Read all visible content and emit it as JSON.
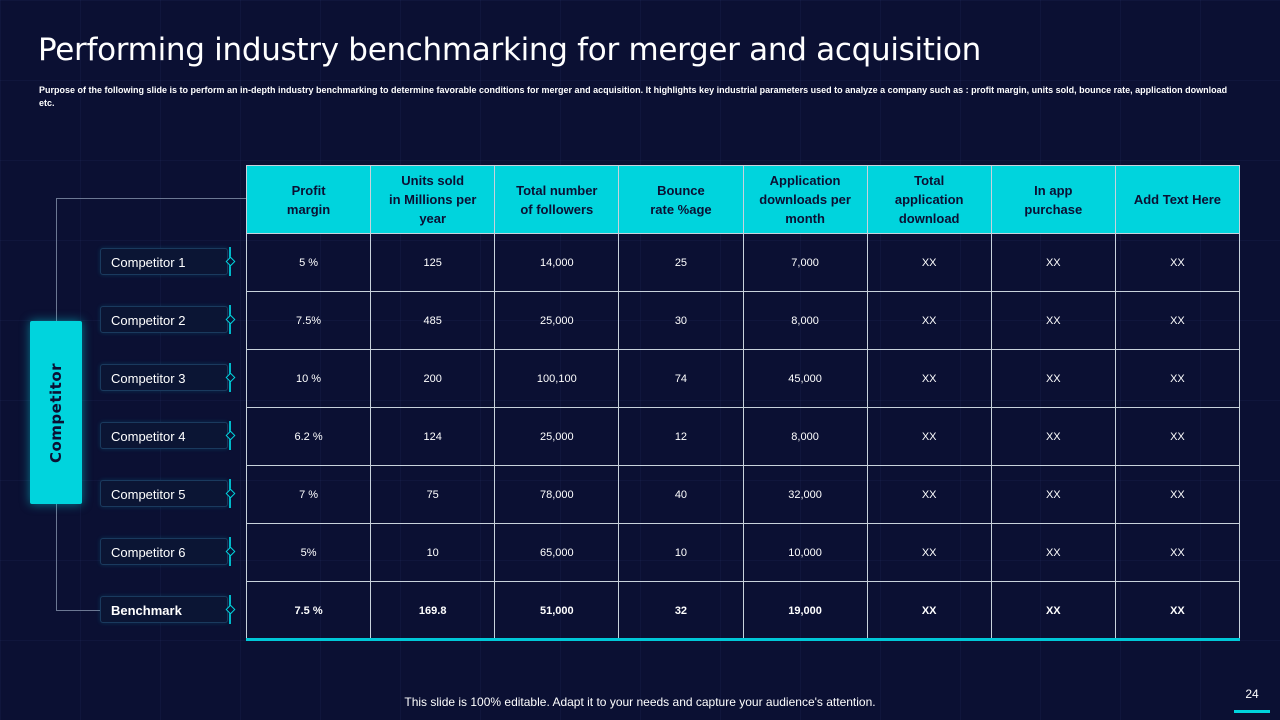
{
  "slide": {
    "title": "Performing industry benchmarking for merger and acquisition",
    "subtitle": "Purpose of the following slide is to perform an in-depth industry benchmarking to determine favorable conditions for merger and acquisition. It highlights key industrial parameters used to analyze a company such as : profit margin, units sold, bounce rate, application download etc.",
    "category_label": "Competitor",
    "footer": "This slide is 100% editable. Adapt it to your needs and capture your audience's attention.",
    "page_number": "24"
  },
  "colors": {
    "background": "#0b1033",
    "accent": "#00d4dd",
    "grid_line": "#c8d2dc"
  },
  "table": {
    "headers": [
      "Profit\nmargin",
      "Units sold\nin Millions per\nyear",
      "Total number\nof followers",
      "Bounce\nrate %age",
      "Application\ndownloads per\nmonth",
      "Total\napplication\ndownload",
      "In app\npurchase",
      "Add Text Here"
    ],
    "rows": [
      {
        "label": "Competitor 1",
        "cells": [
          "5 %",
          "125",
          "14,000",
          "25",
          "7,000",
          "XX",
          "XX",
          "XX"
        ]
      },
      {
        "label": "Competitor 2",
        "cells": [
          "7.5%",
          "485",
          "25,000",
          "30",
          "8,000",
          "XX",
          "XX",
          "XX"
        ]
      },
      {
        "label": "Competitor 3",
        "cells": [
          "10 %",
          "200",
          "100,100",
          "74",
          "45,000",
          "XX",
          "XX",
          "XX"
        ]
      },
      {
        "label": "Competitor 4",
        "cells": [
          "6.2 %",
          "124",
          "25,000",
          "12",
          "8,000",
          "XX",
          "XX",
          "XX"
        ]
      },
      {
        "label": "Competitor 5",
        "cells": [
          "7 %",
          "75",
          "78,000",
          "40",
          "32,000",
          "XX",
          "XX",
          "XX"
        ]
      },
      {
        "label": "Competitor 6",
        "cells": [
          "5%",
          "10",
          "65,000",
          "10",
          "10,000",
          "XX",
          "XX",
          "XX"
        ]
      },
      {
        "label": "Benchmark",
        "cells": [
          "7.5 %",
          "169.8",
          "51,000",
          "32",
          "19,000",
          "XX",
          "XX",
          "XX"
        ]
      }
    ]
  }
}
